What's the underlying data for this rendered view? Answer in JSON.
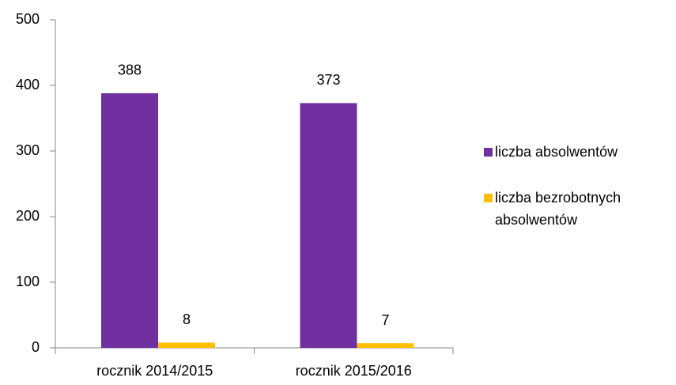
{
  "chart_data": {
    "type": "bar",
    "categories": [
      "rocznik 2014/2015",
      "rocznik 2015/2016"
    ],
    "series": [
      {
        "name": "liczba absolwentów",
        "color": "#7030a0",
        "values": [
          388,
          373
        ]
      },
      {
        "name": "liczba bezrobotnych absolwentów",
        "color": "#ffc000",
        "values": [
          8,
          7
        ]
      }
    ],
    "ylim": [
      0,
      500
    ],
    "yticks": [
      0,
      100,
      200,
      300,
      400,
      500
    ],
    "grid": false,
    "legend": "right"
  }
}
